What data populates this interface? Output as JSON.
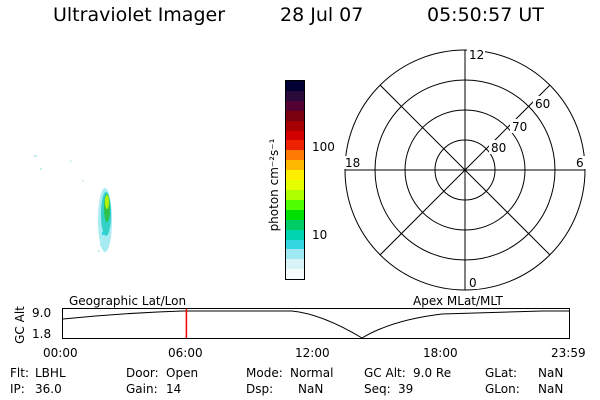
{
  "header": {
    "title": "Ultraviolet Imager",
    "date": "28 Jul 07",
    "time": "05:50:57 UT"
  },
  "colorbar": {
    "label": "photon cm⁻²s⁻¹",
    "ticks": [
      "100",
      "10"
    ],
    "colors": [
      "#000033",
      "#2a0a3a",
      "#550033",
      "#7a0010",
      "#a60000",
      "#d40000",
      "#ee2200",
      "#ff7a00",
      "#ffb800",
      "#ffee00",
      "#e6ff00",
      "#b0ff00",
      "#50ff00",
      "#00e000",
      "#00cc66",
      "#00d4b0",
      "#33d6e0",
      "#9fe9f2",
      "#d8f4f8",
      "#f6fbfc"
    ]
  },
  "polar_plot": {
    "mlt_labels": [
      "12",
      "18",
      "6",
      "0"
    ],
    "lat_labels": [
      "60",
      "70",
      "80"
    ]
  },
  "timeline": {
    "y_axis_label": "GC Alt",
    "y_ticks": [
      "9.0",
      "1.8"
    ],
    "left_caption": "Geographic Lat/Lon",
    "right_caption": "Apex MLat/MLT",
    "x_ticks": [
      "00:00",
      "06:00",
      "12:00",
      "18:00",
      "23:59"
    ],
    "marker_time": "05:50:57",
    "marker_color": "#ff0000"
  },
  "status": {
    "row1": [
      {
        "label": "Flt:",
        "value": "LBHL"
      },
      {
        "label": "Door:",
        "value": "Open"
      },
      {
        "label": "Mode:",
        "value": "Normal"
      },
      {
        "label": "GC Alt:",
        "value": "9.0 Re"
      },
      {
        "label": "GLat:",
        "value": "NaN"
      }
    ],
    "row2": [
      {
        "label": "IP:",
        "value": "36.0"
      },
      {
        "label": "Gain:",
        "value": "14"
      },
      {
        "label": "Dsp:",
        "value": "NaN"
      },
      {
        "label": "Seq:",
        "value": "39"
      },
      {
        "label": "GLon:",
        "value": "NaN"
      }
    ]
  }
}
